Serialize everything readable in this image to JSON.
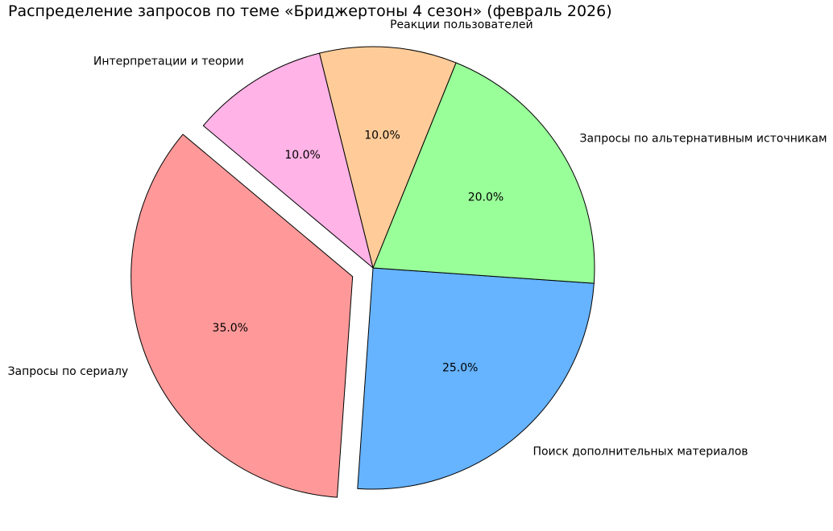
{
  "chart_data": {
    "type": "pie",
    "title": "Распределение запросов по теме «Бриджертоны 4 сезон» (февраль 2026)",
    "slices": [
      {
        "label": "Запросы по сериалу",
        "value": 35.0,
        "pct_label": "35.0%",
        "color": "#ff9999",
        "explode": 0.1
      },
      {
        "label": "Поиск дополнительных материалов",
        "value": 25.0,
        "pct_label": "25.0%",
        "color": "#66b3ff",
        "explode": 0
      },
      {
        "label": "Запросы по альтернативным источникам",
        "value": 20.0,
        "pct_label": "20.0%",
        "color": "#99ff99",
        "explode": 0
      },
      {
        "label": "Реакции пользователей",
        "value": 10.0,
        "pct_label": "10.0%",
        "color": "#ffcc99",
        "explode": 0
      },
      {
        "label": "Интерпретации и теории",
        "value": 10.0,
        "pct_label": "10.0%",
        "color": "#ffb3e6",
        "explode": 0
      }
    ],
    "start_angle": 140,
    "direction": "counterclockwise",
    "label_distance": 1.1,
    "pct_distance": 0.6,
    "edge_color": "#000000",
    "text_color": "#000000",
    "legend_position": "none",
    "background": "#ffffff"
  }
}
